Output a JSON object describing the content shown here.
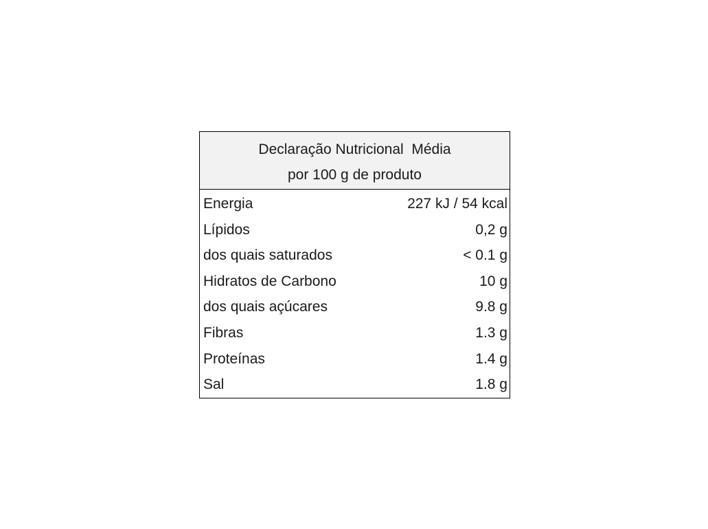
{
  "header": {
    "title": "Declaração Nutricional  Média",
    "subtitle": "por 100 g de produto"
  },
  "rows": [
    {
      "label": "Energia",
      "value": "227 kJ / 54 kcal"
    },
    {
      "label": "Lípidos",
      "value": "0,2 g"
    },
    {
      "label": "dos quais saturados",
      "value": "< 0.1 g"
    },
    {
      "label": "Hidratos de Carbono",
      "value": "10 g"
    },
    {
      "label": "dos quais açúcares",
      "value": "9.8 g"
    },
    {
      "label": "Fibras",
      "value": "1.3 g"
    },
    {
      "label": "Proteínas",
      "value": "1.4 g"
    },
    {
      "label": "Sal",
      "value": "1.8 g"
    }
  ]
}
